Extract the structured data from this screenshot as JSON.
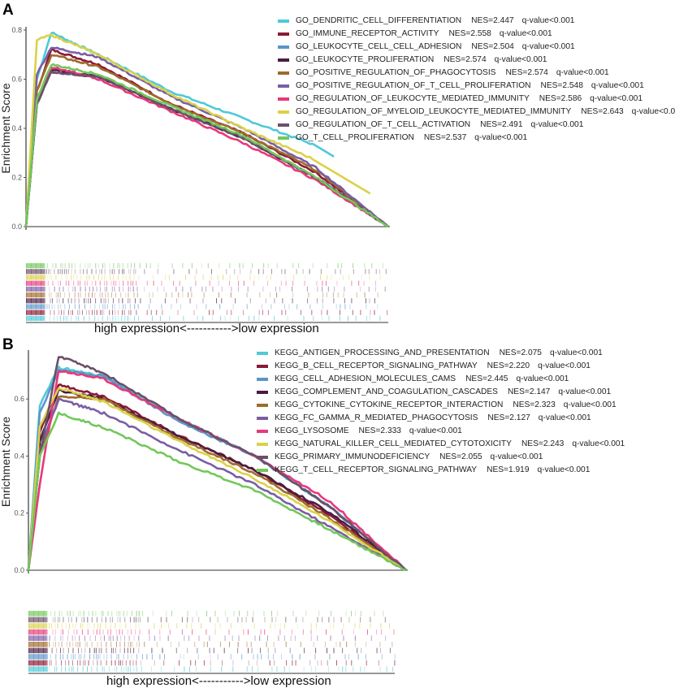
{
  "panels": [
    {
      "letter": "A",
      "ylabel": "Enrichment Score",
      "xcaption": "high expression<----------->low expression",
      "yticks": [
        "0.0",
        "0.2",
        "0.4",
        "0.6",
        "0.8"
      ],
      "legend": [
        {
          "name": "GO_DENDRITIC_CELL_DIFFERENTIATION",
          "nes": "NES=2.447",
          "q": "q-value<0.001",
          "color": "#4fc9d9"
        },
        {
          "name": "GO_IMMUNE_RECEPTOR_ACTIVITY",
          "nes": "NES=2.558",
          "q": "q-value<0.001",
          "color": "#8b1a34"
        },
        {
          "name": "GO_LEUKOCYTE_CELL_CELL_ADHESION",
          "nes": "NES=2.504",
          "q": "q-value<0.001",
          "color": "#5b95c8"
        },
        {
          "name": "GO_LEUKOCYTE_PROLIFERATION",
          "nes": "NES=2.574",
          "q": "q-value<0.001",
          "color": "#4a1c40"
        },
        {
          "name": "GO_POSITIVE_REGULATION_OF_PHAGOCYTOSIS",
          "nes": "NES=2.574",
          "q": "q-value<0.001",
          "color": "#a06a2c"
        },
        {
          "name": "GO_POSITIVE_REGULATION_OF_T_CELL_PROLIFERATION",
          "nes": "NES=2.548",
          "q": "q-value<0.001",
          "color": "#7a5ea4"
        },
        {
          "name": "GO_REGULATION_OF_LEUKOCYTE_MEDIATED_IMMUNITY",
          "nes": "NES=2.586",
          "q": "q-value<0.001",
          "color": "#e8387a"
        },
        {
          "name": "GO_REGULATION_OF_MYELOID_LEUKOCYTE_MEDIATED_IMMUNITY",
          "nes": "NES=2.643",
          "q": "q-value<0.0",
          "color": "#d9d24a"
        },
        {
          "name": "GO_REGULATION_OF_T_CELL_ACTIVATION",
          "nes": "NES=2.491",
          "q": "q-value<0.001",
          "color": "#6b5068"
        },
        {
          "name": "GO_T_CELL_PROLIFERATION",
          "nes": "NES=2.537",
          "q": "q-value<0.001",
          "color": "#72c85a"
        }
      ]
    },
    {
      "letter": "B",
      "ylabel": "Enrichment Score",
      "xcaption": "high expression<----------->low expression",
      "yticks": [
        "0.0",
        "0.2",
        "0.4",
        "0.6"
      ],
      "legend": [
        {
          "name": "KEGG_ANTIGEN_PROCESSING_AND_PRESENTATION",
          "nes": "NES=2.075",
          "q": "q-value<0.001",
          "color": "#4fc9d9"
        },
        {
          "name": "KEGG_B_CELL_RECEPTOR_SIGNALING_PATHWAY",
          "nes": "NES=2.220",
          "q": "q-value<0.001",
          "color": "#8b1a34"
        },
        {
          "name": "KEGG_CELL_ADHESION_MOLECULES_CAMS",
          "nes": "NES=2.445",
          "q": "q-value<0.001",
          "color": "#5b95c8"
        },
        {
          "name": "KEGG_COMPLEMENT_AND_COAGULATION_CASCADES",
          "nes": "NES=2.147",
          "q": "q-value<0.001",
          "color": "#4a1c40"
        },
        {
          "name": "KEGG_CYTOKINE_CYTOKINE_RECEPTOR_INTERACTION",
          "nes": "NES=2.323",
          "q": "q-value<0.001",
          "color": "#a06a2c"
        },
        {
          "name": "KEGG_FC_GAMMA_R_MEDIATED_PHAGOCYTOSIS",
          "nes": "NES=2.127",
          "q": "q-value<0.001",
          "color": "#7a5ea4"
        },
        {
          "name": "KEGG_LYSOSOME",
          "nes": "NES=2.333",
          "q": "q-value<0.001",
          "color": "#e8387a"
        },
        {
          "name": "KEGG_NATURAL_KILLER_CELL_MEDIATED_CYTOTOXICITY",
          "nes": "NES=2.243",
          "q": "q-value<0.001",
          "color": "#d9d24a"
        },
        {
          "name": "KEGG_PRIMARY_IMMUNODEFICIENCY",
          "nes": "NES=2.055",
          "q": "q-value<0.001",
          "color": "#6b5068"
        },
        {
          "name": "KEGG_T_CELL_RECEPTOR_SIGNALING_PATHWAY",
          "nes": "NES=1.919",
          "q": "q-value<0.001",
          "color": "#72c85a"
        }
      ]
    }
  ],
  "chart_data": [
    {
      "type": "line",
      "title": "A",
      "xlabel": "high expression<----------->low expression",
      "ylabel": "Enrichment Score",
      "ylim": [
        0,
        0.82
      ],
      "x": [
        0,
        0.03,
        0.07,
        0.2,
        0.4,
        0.6,
        0.8,
        1.0
      ],
      "series": [
        {
          "name": "GO_DENDRITIC_CELL_DIFFERENTIATION",
          "nes": 2.447,
          "values": [
            0,
            0.6,
            0.79,
            0.7,
            0.55,
            0.44,
            0.33,
            null
          ]
        },
        {
          "name": "GO_IMMUNE_RECEPTOR_ACTIVITY",
          "nes": 2.558,
          "values": [
            0,
            0.55,
            0.72,
            0.66,
            0.5,
            0.38,
            0.22,
            0.0
          ]
        },
        {
          "name": "GO_LEUKOCYTE_CELL_CELL_ADHESION",
          "nes": 2.504,
          "values": [
            0,
            0.5,
            0.63,
            0.61,
            0.48,
            0.36,
            0.2,
            0.0
          ]
        },
        {
          "name": "GO_LEUKOCYTE_PROLIFERATION",
          "nes": 2.574,
          "values": [
            0,
            0.5,
            0.64,
            0.61,
            0.48,
            0.36,
            0.2,
            0.0
          ]
        },
        {
          "name": "GO_POSITIVE_REGULATION_OF_PHAGOCYTOSIS",
          "nes": 2.574,
          "values": [
            0,
            0.55,
            0.7,
            0.65,
            0.5,
            0.38,
            0.23,
            0.0
          ]
        },
        {
          "name": "GO_POSITIVE_REGULATION_OF_T_CELL_PROLIFERATION",
          "nes": 2.548,
          "values": [
            0,
            0.62,
            0.73,
            0.69,
            0.53,
            0.4,
            0.24,
            0.0
          ]
        },
        {
          "name": "GO_REGULATION_OF_LEUKOCYTE_MEDIATED_IMMUNITY",
          "nes": 2.586,
          "values": [
            0,
            0.52,
            0.65,
            0.6,
            0.47,
            0.34,
            0.19,
            0.0
          ]
        },
        {
          "name": "GO_REGULATION_OF_MYELOID_LEUKOCYTE_MEDIATED_IMMUNITY",
          "nes": 2.643,
          "values": [
            0,
            0.76,
            0.78,
            0.7,
            0.54,
            0.4,
            0.27,
            null
          ]
        },
        {
          "name": "GO_REGULATION_OF_T_CELL_ACTIVATION",
          "nes": 2.491,
          "values": [
            0,
            0.5,
            0.63,
            0.61,
            0.48,
            0.36,
            0.2,
            0.0
          ]
        },
        {
          "name": "GO_T_CELL_PROLIFERATION",
          "nes": 2.537,
          "values": [
            0,
            0.52,
            0.66,
            0.62,
            0.49,
            0.37,
            0.2,
            0.0
          ]
        }
      ]
    },
    {
      "type": "line",
      "title": "B",
      "xlabel": "high expression<----------->low expression",
      "ylabel": "Enrichment Score",
      "ylim": [
        0,
        0.76
      ],
      "x": [
        0,
        0.03,
        0.08,
        0.2,
        0.4,
        0.6,
        0.8,
        1.0
      ],
      "series": [
        {
          "name": "KEGG_ANTIGEN_PROCESSING_AND_PRESENTATION",
          "nes": 2.075,
          "values": [
            0,
            0.58,
            0.71,
            0.68,
            0.53,
            0.4,
            0.22,
            0.0
          ]
        },
        {
          "name": "KEGG_B_CELL_RECEPTOR_SIGNALING_PATHWAY",
          "nes": 2.22,
          "values": [
            0,
            0.48,
            0.65,
            0.61,
            0.47,
            0.35,
            0.19,
            0.0
          ]
        },
        {
          "name": "KEGG_CELL_ADHESION_MOLECULES_CAMS",
          "nes": 2.445,
          "values": [
            0,
            0.55,
            0.7,
            0.68,
            0.52,
            0.4,
            0.22,
            0.0
          ]
        },
        {
          "name": "KEGG_COMPLEMENT_AND_COAGULATION_CASCADES",
          "nes": 2.147,
          "values": [
            0,
            0.45,
            0.63,
            0.6,
            0.47,
            0.35,
            0.2,
            0.0
          ]
        },
        {
          "name": "KEGG_CYTOKINE_CYTOKINE_RECEPTOR_INTERACTION",
          "nes": 2.323,
          "values": [
            0,
            0.4,
            0.61,
            0.6,
            0.46,
            0.34,
            0.18,
            0.0
          ]
        },
        {
          "name": "KEGG_FC_GAMMA_R_MEDIATED_PHAGOCYTOSIS",
          "nes": 2.127,
          "values": [
            0,
            0.42,
            0.6,
            0.55,
            0.42,
            0.3,
            0.15,
            0.0
          ]
        },
        {
          "name": "KEGG_LYSOSOME",
          "nes": 2.333,
          "values": [
            0,
            0.3,
            0.7,
            0.67,
            0.53,
            0.4,
            0.24,
            0.0
          ]
        },
        {
          "name": "KEGG_NATURAL_KILLER_CELL_MEDIATED_CYTOTOXICITY",
          "nes": 2.243,
          "values": [
            0,
            0.5,
            0.64,
            0.59,
            0.45,
            0.32,
            0.17,
            0.0
          ]
        },
        {
          "name": "KEGG_PRIMARY_IMMUNODEFICIENCY",
          "nes": 2.055,
          "values": [
            0,
            0.4,
            0.75,
            0.69,
            0.53,
            0.4,
            0.22,
            0.0
          ]
        },
        {
          "name": "KEGG_T_CELL_RECEPTOR_SIGNALING_PATHWAY",
          "nes": 1.919,
          "values": [
            0,
            0.4,
            0.55,
            0.5,
            0.38,
            0.28,
            0.14,
            0.0
          ]
        }
      ]
    }
  ]
}
